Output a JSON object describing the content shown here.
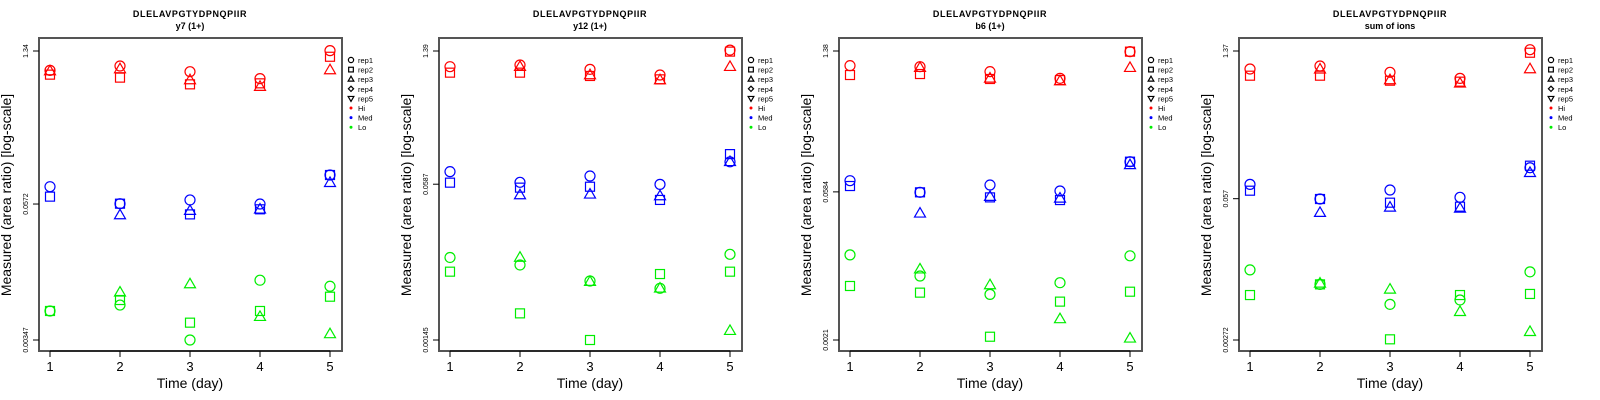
{
  "colors": {
    "Hi": "#ff0000",
    "Med": "#0000ff",
    "Lo": "#00ee00",
    "axis": "#555555"
  },
  "legend": {
    "reps": [
      {
        "label": "rep1",
        "symbol": "circle"
      },
      {
        "label": "rep2",
        "symbol": "square"
      },
      {
        "label": "rep3",
        "symbol": "triangle-up"
      },
      {
        "label": "rep4",
        "symbol": "diamond"
      },
      {
        "label": "rep5",
        "symbol": "triangle-down"
      }
    ],
    "groups": [
      "Hi",
      "Med",
      "Lo"
    ]
  },
  "chart_data": [
    {
      "type": "scatter",
      "title": "DLELAVPGTYDPNQPIIR",
      "subtitle": "y7 (1+)",
      "xlabel": "Time (day)",
      "ylabel": "Measured (area ratio) [log-scale]",
      "yscale": "log",
      "x": [
        1,
        2,
        3,
        4,
        5
      ],
      "xticks": [
        "1",
        "2",
        "3",
        "4",
        "5"
      ],
      "yticks": [
        0.00347,
        0.0572,
        1.34
      ],
      "ytick_labels": [
        "0.00347",
        "0.0572",
        "1.34"
      ],
      "legend_position": "right",
      "series": {
        "Hi": {
          "rep1": [
            0.899,
            0.984,
            0.875,
            0.758,
            1.35
          ],
          "rep2": [
            0.823,
            0.774,
            0.674,
            0.688,
            1.19
          ],
          "rep3": [
            0.887,
            0.925,
            0.737,
            0.643,
            0.906
          ]
        },
        "Med": {
          "rep1": [
            0.0818,
            0.0576,
            0.0622,
            0.0572,
            0.104
          ],
          "rep2": [
            0.0666,
            0.0576,
            0.0462,
            0.0513,
            0.104
          ],
          "rep3": [
            null,
            0.0456,
            0.0499,
            0.0513,
            0.0887
          ]
        },
        "Lo": {
          "rep1": [
            0.00631,
            0.00713,
            0.00347,
            0.0119,
            0.0105
          ],
          "rep2": [
            0.00631,
            0.00791,
            0.00496,
            0.00631,
            0.00847
          ],
          "rep3": [
            null,
            0.00927,
            0.011,
            0.00561,
            0.00393
          ]
        }
      }
    },
    {
      "type": "scatter",
      "title": "DLELAVPGTYDPNQPIIR",
      "subtitle": "y12 (1+)",
      "xlabel": "Time (day)",
      "ylabel": "Measured (area ratio) [log-scale]",
      "yscale": "log",
      "x": [
        1,
        2,
        3,
        4,
        5
      ],
      "xticks": [
        "1",
        "2",
        "3",
        "4",
        "5"
      ],
      "yticks": [
        0.00145,
        0.0587,
        1.39
      ],
      "ytick_labels": [
        "0.00145",
        "0.0587",
        "1.39"
      ],
      "legend_position": "right",
      "series": {
        "Hi": {
          "rep1": [
            0.958,
            0.997,
            0.899,
            0.786,
            1.42
          ],
          "rep2": [
            0.831,
            0.831,
            0.768,
            0.709,
            1.37
          ],
          "rep3": [
            null,
            0.958,
            0.786,
            0.698,
            0.958
          ]
        },
        "Med": {
          "rep1": [
            0.0791,
            0.0614,
            0.0713,
            0.0585,
            0.1
          ],
          "rep2": [
            0.0609,
            0.0541,
            0.0553,
            0.0404,
            0.12
          ],
          "rep3": [
            null,
            0.0454,
            0.0462,
            0.0444,
            0.1
          ]
        },
        "Lo": {
          "rep1": [
            0.0103,
            0.00862,
            0.00589,
            0.00495,
            0.0111
          ],
          "rep2": [
            0.00735,
            0.00273,
            0.00145,
            0.00695,
            0.00735
          ],
          "rep3": [
            null,
            0.0103,
            0.0058,
            0.00495,
            0.00181
          ]
        }
      }
    },
    {
      "type": "scatter",
      "title": "DLELAVPGTYDPNQPIIR",
      "subtitle": "b6 (1+)",
      "xlabel": "Time (day)",
      "ylabel": "Measured (area ratio) [log-scale]",
      "yscale": "log",
      "x": [
        1,
        2,
        3,
        4,
        5
      ],
      "xticks": [
        "1",
        "2",
        "3",
        "4",
        "5"
      ],
      "yticks": [
        0.0021,
        0.0584,
        1.38
      ],
      "ytick_labels": [
        "0.0021",
        "0.0584",
        "1.38"
      ],
      "legend_position": "right",
      "series": {
        "Hi": {
          "rep1": [
            0.993,
            0.97,
            0.868,
            0.747,
            1.36
          ],
          "rep2": [
            0.805,
            0.823,
            0.736,
            0.719,
            1.36
          ],
          "rep3": [
            null,
            0.949,
            0.747,
            0.704,
            0.949
          ]
        },
        "Med": {
          "rep1": [
            0.0751,
            0.0578,
            0.0681,
            0.0596,
            0.115
          ],
          "rep2": [
            0.0666,
            0.0578,
            0.0516,
            0.0486,
            0.115
          ],
          "rep3": [
            null,
            0.0361,
            0.0525,
            0.0505,
            0.107
          ]
        },
        "Lo": {
          "rep1": [
            0.0142,
            0.00883,
            0.00585,
            0.0076,
            0.0139
          ],
          "rep2": [
            0.00706,
            0.00608,
            0.00226,
            0.00497,
            0.00621
          ],
          "rep3": [
            null,
            0.0103,
            0.00722,
            0.00337,
            0.00218
          ]
        }
      }
    },
    {
      "type": "scatter",
      "title": "DLELAVPGTYDPNQPIIR",
      "subtitle": "sum of ions",
      "xlabel": "Time (day)",
      "ylabel": "Measured (area ratio) [log-scale]",
      "yscale": "log",
      "x": [
        1,
        2,
        3,
        4,
        5
      ],
      "xticks": [
        "1",
        "2",
        "3",
        "4",
        "5"
      ],
      "yticks": [
        0.00272,
        0.057,
        1.37
      ],
      "ytick_labels": [
        "0.00272",
        "0.057",
        "1.37"
      ],
      "legend_position": "right",
      "series": {
        "Hi": {
          "rep1": [
            0.93,
            0.992,
            0.866,
            0.76,
            1.41
          ],
          "rep2": [
            0.805,
            0.805,
            0.723,
            0.708,
            1.32
          ],
          "rep3": [
            null,
            0.925,
            0.734,
            0.683,
            0.93
          ]
        },
        "Med": {
          "rep1": [
            0.0776,
            0.0566,
            0.0687,
            0.0587,
            0.111
          ],
          "rep2": [
            0.0677,
            0.0566,
            0.0523,
            0.048,
            0.116
          ],
          "rep3": [
            null,
            0.0422,
            0.0473,
            0.0463,
            0.0997
          ]
        },
        "Lo": {
          "rep1": [
            0.0123,
            0.00901,
            0.00586,
            0.00644,
            0.0118
          ],
          "rep2": [
            0.00716,
            0.00901,
            0.00276,
            0.00716,
            0.00733
          ],
          "rep3": [
            null,
            0.00921,
            0.00809,
            0.005,
            0.00325
          ]
        }
      }
    }
  ]
}
